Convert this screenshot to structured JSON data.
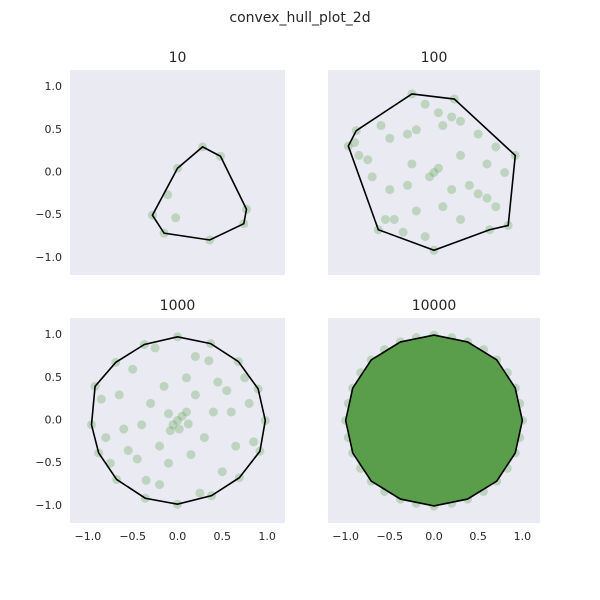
{
  "title": "convex_hull_plot_2d",
  "chart_data": [
    {
      "type": "scatter",
      "title": "10",
      "color": "#5a9e4b",
      "alpha": 0.3,
      "hull_color": "#000000",
      "xlim": [
        -1.2,
        1.2
      ],
      "ylim": [
        -1.2,
        1.2
      ],
      "xticks": [],
      "yticks": [
        {
          "value": -1,
          "label": "−1.0"
        },
        {
          "value": -0.5,
          "label": "−0.5"
        },
        {
          "value": 0,
          "label": "0.0"
        },
        {
          "value": 0.5,
          "label": "0.5"
        },
        {
          "value": 1,
          "label": "1.0"
        }
      ],
      "x": [
        0.28,
        0.48,
        0,
        -0.11,
        -0.28,
        -0.15,
        -0.02,
        0.36,
        0.77,
        0.74
      ],
      "y": [
        0.3,
        0.19,
        0.05,
        -0.26,
        -0.5,
        -0.71,
        -0.53,
        -0.79,
        -0.43,
        -0.6
      ],
      "hull": {
        "x": [
          0.28,
          0.48,
          0.77,
          0.74,
          0.36,
          -0.15,
          -0.28,
          0
        ],
        "y": [
          0.3,
          0.19,
          -0.43,
          -0.6,
          -0.79,
          -0.71,
          -0.5,
          0.05
        ]
      }
    },
    {
      "type": "scatter",
      "title": "100",
      "color": "#5a9e4b",
      "alpha": 0.3,
      "hull_color": "#000000",
      "xlim": [
        -1.2,
        1.2
      ],
      "ylim": [
        -1.2,
        1.2
      ],
      "xticks": [],
      "yticks": [],
      "x": [
        -0.25,
        0.23,
        0.92,
        0.84,
        0.63,
        0,
        -0.63,
        -0.97,
        -0.88,
        -0.9,
        -0.85,
        -0.75,
        -0.6,
        -0.5,
        -0.3,
        -0.2,
        -0.1,
        0.05,
        0.1,
        0.2,
        0.3,
        0.5,
        0.7,
        0.6,
        0.3,
        0,
        -0.05,
        0.05,
        -0.3,
        -0.5,
        -0.7,
        -0.55,
        -0.45,
        -0.2,
        -0.1,
        0.1,
        0.3,
        0.5,
        0.7,
        0.8,
        0.6,
        0.2,
        -0.25,
        0.4,
        -0.35
      ],
      "y": [
        0.92,
        0.86,
        0.2,
        -0.62,
        -0.67,
        -0.91,
        -0.67,
        0.31,
        0.49,
        0.35,
        0.2,
        0.15,
        0.55,
        0.4,
        0.45,
        0.5,
        0.8,
        0.7,
        0.55,
        0.65,
        0.6,
        0.45,
        0.3,
        0.1,
        0.2,
        0,
        -0.05,
        0.05,
        -0.15,
        -0.2,
        -0.05,
        -0.55,
        -0.55,
        -0.45,
        -0.75,
        -0.4,
        -0.55,
        -0.25,
        -0.4,
        0,
        -0.3,
        -0.2,
        0.1,
        -0.15,
        -0.7
      ],
      "hull": {
        "x": [
          -0.25,
          0.23,
          0.92,
          0.84,
          0.63,
          0,
          -0.63,
          -0.97,
          -0.88
        ],
        "y": [
          0.92,
          0.86,
          0.2,
          -0.62,
          -0.67,
          -0.91,
          -0.67,
          0.31,
          0.49
        ]
      }
    },
    {
      "type": "scatter",
      "title": "1000",
      "color": "#5a9e4b",
      "alpha": 0.3,
      "hull_color": "#000000",
      "xlim": [
        -1.2,
        1.2
      ],
      "ylim": [
        -1.2,
        1.2
      ],
      "xticks": [
        {
          "value": -1,
          "label": "−1.0"
        },
        {
          "value": -0.5,
          "label": "−0.5"
        },
        {
          "value": 0,
          "label": "0.0"
        },
        {
          "value": 0.5,
          "label": "0.5"
        },
        {
          "value": 1,
          "label": "1.0"
        }
      ],
      "yticks": [
        {
          "value": -1,
          "label": "−1.0"
        },
        {
          "value": -0.5,
          "label": "−0.5"
        },
        {
          "value": 0,
          "label": "0.0"
        },
        {
          "value": 0.5,
          "label": "0.5"
        },
        {
          "value": 1,
          "label": "1.0"
        }
      ],
      "x": [
        0.98,
        0.9,
        0.68,
        0.37,
        0,
        -0.37,
        -0.69,
        -0.92,
        -0.96,
        -0.88,
        -0.68,
        -0.36,
        0,
        0.38,
        0.69,
        0.92,
        0,
        0.05,
        -0.05,
        0.1,
        -0.1,
        0.02,
        -0.08,
        0.12,
        0.2,
        -0.2,
        0.3,
        -0.3,
        0.45,
        -0.45,
        0.6,
        -0.6,
        0.75,
        -0.75,
        0.5,
        -0.5,
        0.2,
        -0.2,
        0.35,
        -0.35,
        0.8,
        -0.8,
        0.1,
        -0.1,
        0.55,
        -0.55,
        0.25,
        -0.25,
        0.65,
        -0.65,
        0.4,
        -0.4,
        0.15,
        -0.15,
        0.85,
        -0.85
      ],
      "y": [
        0,
        0.37,
        0.69,
        0.9,
        0.98,
        0.89,
        0.68,
        0.4,
        -0.05,
        -0.38,
        -0.69,
        -0.91,
        -0.98,
        -0.88,
        -0.67,
        -0.36,
        0,
        0.05,
        -0.05,
        0.1,
        0.08,
        -0.1,
        -0.12,
        -0.04,
        0.3,
        -0.3,
        -0.2,
        0.2,
        0.45,
        -0.45,
        0.1,
        -0.1,
        0.5,
        -0.5,
        -0.6,
        0.6,
        0.75,
        -0.75,
        0.7,
        -0.7,
        0.2,
        -0.2,
        0.5,
        -0.5,
        0.35,
        -0.35,
        -0.85,
        0.85,
        -0.3,
        0.3,
        0.1,
        -0.05,
        -0.4,
        0.4,
        -0.25,
        0.25
      ],
      "hull": {
        "x": [
          0.98,
          0.9,
          0.68,
          0.37,
          0,
          -0.37,
          -0.69,
          -0.92,
          -0.96,
          -0.88,
          -0.68,
          -0.36,
          0,
          0.38,
          0.69,
          0.92
        ],
        "y": [
          0,
          0.37,
          0.69,
          0.9,
          0.98,
          0.89,
          0.68,
          0.4,
          -0.05,
          -0.38,
          -0.69,
          -0.91,
          -0.98,
          -0.88,
          -0.67,
          -0.36
        ]
      }
    },
    {
      "type": "scatter",
      "title": "10000",
      "color": "#5a9e4b",
      "alpha": 0.3,
      "hull_color": "#000000",
      "hull_fill": "#5a9e4b",
      "xlim": [
        -1.2,
        1.2
      ],
      "ylim": [
        -1.2,
        1.2
      ],
      "xticks": [
        {
          "value": -1,
          "label": "−1.0"
        },
        {
          "value": -0.5,
          "label": "−0.5"
        },
        {
          "value": 0,
          "label": "0.0"
        },
        {
          "value": 0.5,
          "label": "0.5"
        },
        {
          "value": 1,
          "label": "1.0"
        }
      ],
      "yticks": [],
      "x": [
        1,
        0.97,
        0.92,
        0.83,
        0.71,
        0.56,
        0.38,
        0.2,
        0,
        -0.2,
        -0.38,
        -0.56,
        -0.71,
        -0.83,
        -0.92,
        -0.97,
        -1,
        -0.97,
        -0.92,
        -0.83,
        -0.71,
        -0.56,
        -0.38,
        -0.2,
        0,
        0.2,
        0.38,
        0.56,
        0.71,
        0.83,
        0.92,
        0.97
      ],
      "y": [
        0,
        0.2,
        0.38,
        0.56,
        0.71,
        0.83,
        0.92,
        0.97,
        1,
        0.97,
        0.92,
        0.83,
        0.71,
        0.56,
        0.38,
        0.2,
        0,
        -0.2,
        -0.38,
        -0.56,
        -0.71,
        -0.83,
        -0.92,
        -0.97,
        -1,
        -0.97,
        -0.92,
        -0.83,
        -0.71,
        -0.56,
        -0.38,
        -0.2
      ],
      "hull": {
        "x": [
          1,
          0.92,
          0.71,
          0.38,
          0,
          -0.38,
          -0.71,
          -0.92,
          -1,
          -0.92,
          -0.71,
          -0.38,
          0,
          0.38,
          0.71,
          0.92
        ],
        "y": [
          0,
          0.38,
          0.71,
          0.92,
          1,
          0.92,
          0.71,
          0.38,
          0,
          -0.38,
          -0.71,
          -0.92,
          -1,
          -0.92,
          -0.71,
          -0.38
        ]
      }
    }
  ]
}
